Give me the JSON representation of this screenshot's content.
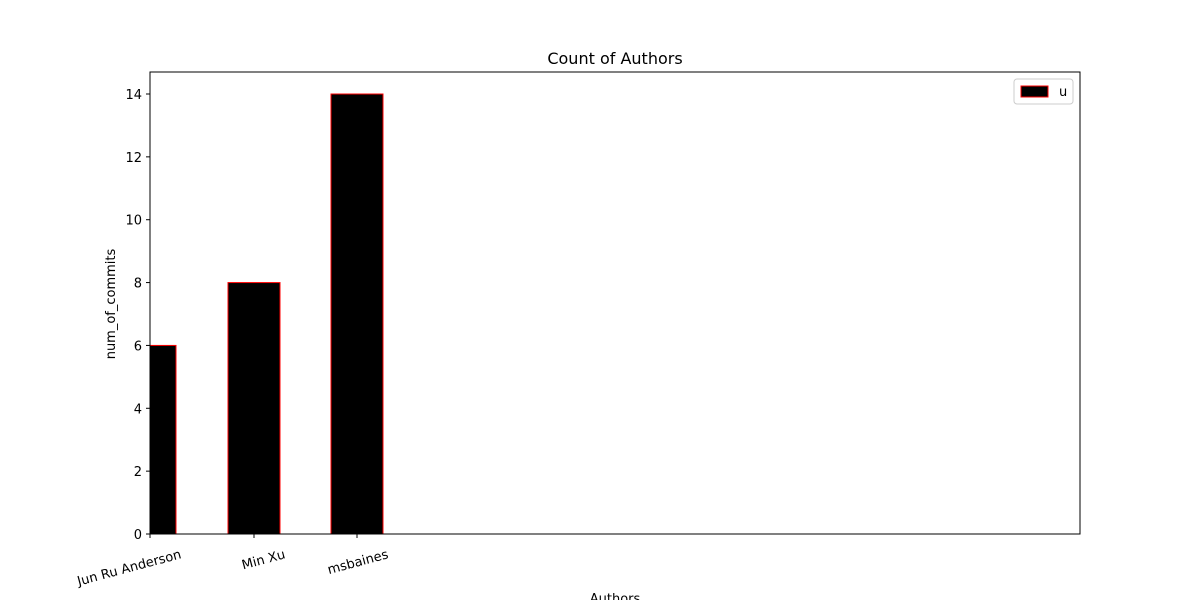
{
  "chart_data": {
    "type": "bar",
    "title": "Count of Authors",
    "xlabel": "Authors",
    "ylabel": "num_of_commits",
    "categories": [
      "Jun Ru Anderson",
      "Min Xu",
      "msbaines"
    ],
    "series": [
      {
        "name": "u",
        "values": [
          6,
          8,
          14
        ]
      }
    ],
    "ylim": [
      0,
      14.7
    ],
    "yticks": [
      0,
      2,
      4,
      6,
      8,
      10,
      12,
      14
    ],
    "grid": false,
    "legend": "top-right",
    "colors": {
      "bar_fill": "#000000",
      "bar_edge": "#ff0000",
      "axes": "#000000"
    }
  }
}
